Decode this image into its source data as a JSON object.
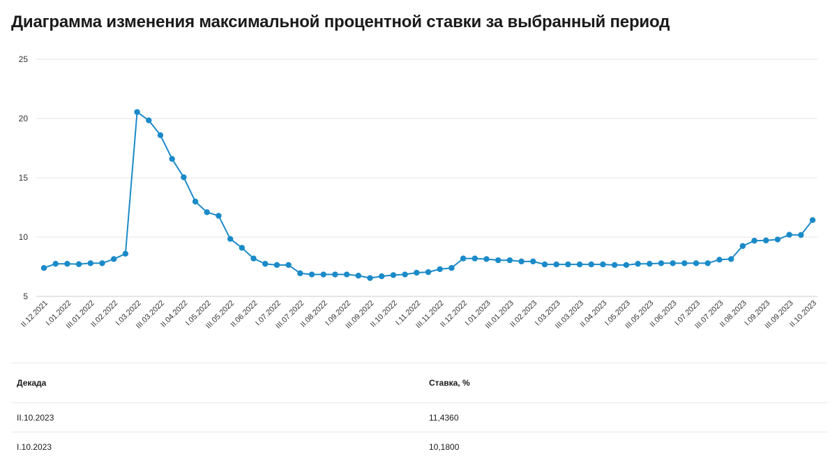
{
  "title": "Диаграмма изменения максимальной процентной ставки за выбранный период",
  "colors": {
    "line": "#1a8ac8",
    "grid": "#e6e6e6"
  },
  "chart_data": {
    "type": "line",
    "title": "Диаграмма изменения максимальной процентной ставки за выбранный период",
    "ylim": [
      5,
      25
    ],
    "yticks": [
      5,
      10,
      15,
      20,
      25
    ],
    "grid": true,
    "x": [
      "II.12.2021",
      "III.12.2021",
      "I.01.2022",
      "II.01.2022",
      "III.01.2022",
      "I.02.2022",
      "II.02.2022",
      "III.02.2022",
      "I.03.2022",
      "II.03.2022",
      "III.03.2022",
      "I.04.2022",
      "II.04.2022",
      "III.04.2022",
      "I.05.2022",
      "II.05.2022",
      "III.05.2022",
      "I.06.2022",
      "II.06.2022",
      "III.06.2022",
      "I.07.2022",
      "II.07.2022",
      "III.07.2022",
      "I.08.2022",
      "II.08.2022",
      "III.08.2022",
      "I.09.2022",
      "II.09.2022",
      "III.09.2022",
      "I.10.2022",
      "II.10.2022",
      "III.10.2022",
      "I.11.2022",
      "II.11.2022",
      "III.11.2022",
      "I.12.2022",
      "II.12.2022",
      "III.12.2022",
      "I.01.2023",
      "II.01.2023",
      "III.01.2023",
      "I.02.2023",
      "II.02.2023",
      "III.02.2023",
      "I.03.2023",
      "II.03.2023",
      "III.03.2023",
      "I.04.2023",
      "II.04.2023",
      "III.04.2023",
      "I.05.2023",
      "II.05.2023",
      "III.05.2023",
      "I.06.2023",
      "II.06.2023",
      "III.06.2023",
      "I.07.2023",
      "II.07.2023",
      "III.07.2023",
      "I.08.2023",
      "II.08.2023",
      "III.08.2023",
      "I.09.2023",
      "II.09.2023",
      "III.09.2023",
      "I.10.2023",
      "II.10.2023"
    ],
    "x_tick_labels_shown": [
      "II.12.2021",
      "I.01.2022",
      "III.01.2022",
      "II.02.2022",
      "I.03.2022",
      "III.03.2022",
      "II.04.2022",
      "I.05.2022",
      "III.05.2022",
      "II.06.2022",
      "I.07.2022",
      "III.07.2022",
      "II.08.2022",
      "I.09.2022",
      "III.09.2022",
      "II.10.2022",
      "I.11.2022",
      "III.11.2022",
      "II.12.2022",
      "I.01.2023",
      "III.01.2023",
      "II.02.2023",
      "I.03.2023",
      "III.03.2023",
      "II.04.2023",
      "I.05.2023",
      "III.05.2023",
      "II.06.2023",
      "I.07.2023",
      "III.07.2023",
      "II.08.2023",
      "I.09.2023",
      "III.09.2023",
      "II.10.2023"
    ],
    "series": [
      {
        "values": [
          7.4,
          7.75,
          7.75,
          7.72,
          7.8,
          7.8,
          8.15,
          8.6,
          20.55,
          19.85,
          18.6,
          16.6,
          15.05,
          13.0,
          12.1,
          11.8,
          9.85,
          9.1,
          8.2,
          7.75,
          7.65,
          7.65,
          6.95,
          6.85,
          6.85,
          6.85,
          6.85,
          6.75,
          6.55,
          6.7,
          6.8,
          6.85,
          7.0,
          7.05,
          7.3,
          7.4,
          8.2,
          8.2,
          8.15,
          8.05,
          8.05,
          7.95,
          7.95,
          7.7,
          7.7,
          7.7,
          7.7,
          7.7,
          7.7,
          7.65,
          7.65,
          7.75,
          7.75,
          7.8,
          7.8,
          7.8,
          7.8,
          7.8,
          8.1,
          8.15,
          9.25,
          9.7,
          9.72,
          9.8,
          10.2,
          10.18,
          11.436
        ]
      }
    ]
  },
  "table": {
    "headers": {
      "decade": "Декада",
      "rate": "Ставка, %"
    },
    "rows": [
      {
        "decade": "II.10.2023",
        "rate": "11,4360"
      },
      {
        "decade": "I.10.2023",
        "rate": "10,1800"
      }
    ]
  }
}
